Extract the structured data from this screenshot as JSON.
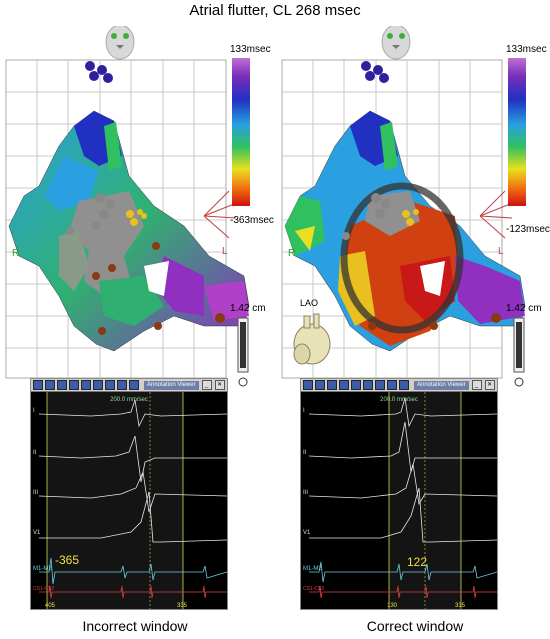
{
  "figure": {
    "title": "Atrial flutter, CL 268 msec"
  },
  "panels": [
    {
      "caption": "Incorrect window",
      "scale": {
        "max": "133msec",
        "min": "-363msec"
      },
      "distance": "1.42 cm",
      "axis_right": "R",
      "axis_left": "L",
      "ecg": {
        "sweep": "200.0 mm/sec",
        "toolbar_title": "Annotation Viewer",
        "leads": [
          "I",
          "II",
          "III",
          "V1",
          "M1-M2",
          "CS1-CS2"
        ],
        "lat_value": "-365",
        "window_start": "405",
        "window_end": "335"
      }
    },
    {
      "caption": "Correct window",
      "scale": {
        "max": "133msec",
        "min": "-123msec"
      },
      "distance": "1.42 cm",
      "axis_right": "R",
      "axis_left": "L",
      "view_label": "LAO",
      "ecg": {
        "sweep": "200.0 mm/sec",
        "toolbar_title": "Annotation Viewer",
        "leads": [
          "I",
          "II",
          "III",
          "V1",
          "M1-M2",
          "CS1-CS2"
        ],
        "lat_value": "122",
        "window_start": "130",
        "window_end": "335"
      }
    }
  ]
}
